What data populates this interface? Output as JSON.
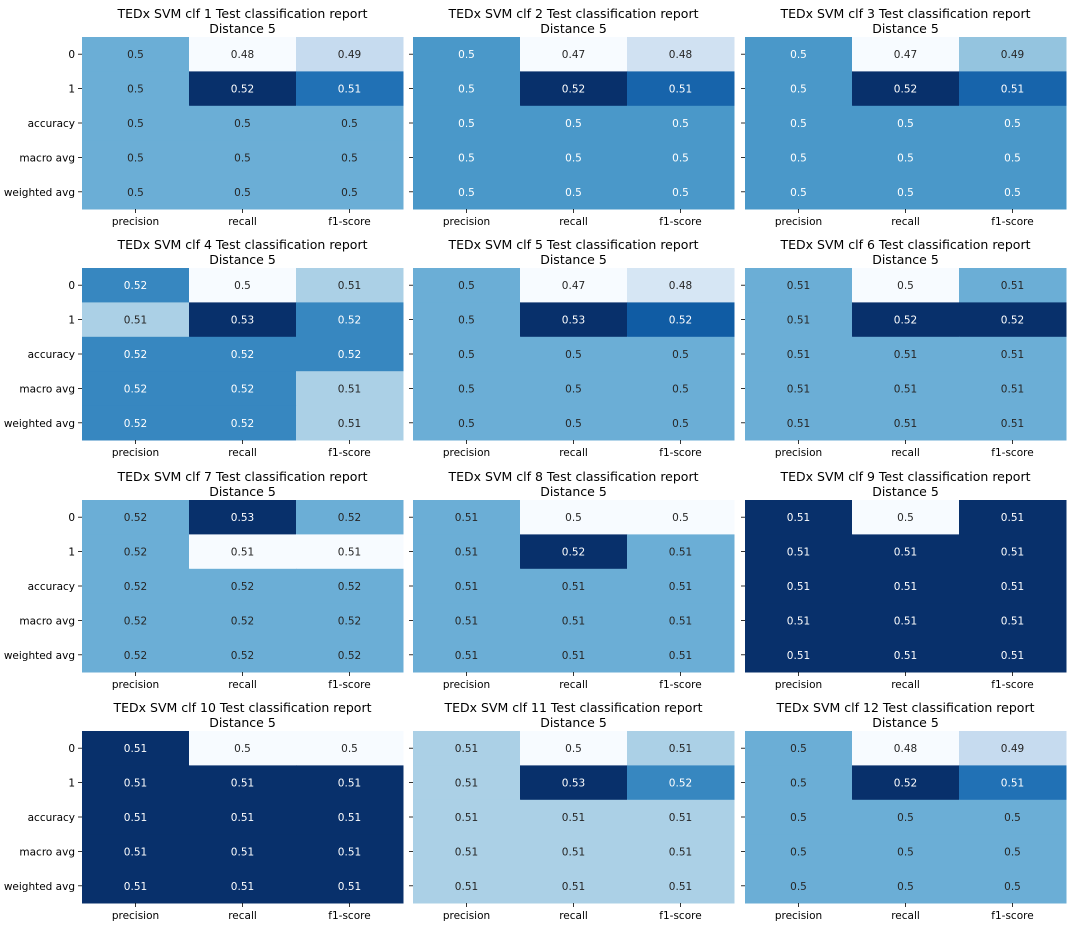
{
  "chart_data": [
    {
      "type": "heatmap",
      "title": [
        "TEDx SVM clf 1 Test classification report",
        "Distance 5"
      ],
      "rows": [
        "0",
        "1",
        "accuracy",
        "macro avg",
        "weighted avg"
      ],
      "columns": [
        "precision",
        "recall",
        "f1-score"
      ],
      "values": [
        [
          0.5,
          0.48,
          0.49
        ],
        [
          0.5,
          0.52,
          0.51
        ],
        [
          0.5,
          0.5,
          0.5
        ],
        [
          0.5,
          0.5,
          0.5
        ],
        [
          0.5,
          0.5,
          0.5
        ]
      ]
    },
    {
      "type": "heatmap",
      "title": [
        "TEDx SVM clf 2 Test classification report",
        "Distance 5"
      ],
      "rows": [
        "0",
        "1",
        "accuracy",
        "macro avg",
        "weighted avg"
      ],
      "columns": [
        "precision",
        "recall",
        "f1-score"
      ],
      "values": [
        [
          0.5,
          0.47,
          0.48
        ],
        [
          0.5,
          0.52,
          0.51
        ],
        [
          0.5,
          0.5,
          0.5
        ],
        [
          0.5,
          0.5,
          0.5
        ],
        [
          0.5,
          0.5,
          0.5
        ]
      ]
    },
    {
      "type": "heatmap",
      "title": [
        "TEDx SVM clf 3 Test classification report",
        "Distance 5"
      ],
      "rows": [
        "0",
        "1",
        "accuracy",
        "macro avg",
        "weighted avg"
      ],
      "columns": [
        "precision",
        "recall",
        "f1-score"
      ],
      "values": [
        [
          0.5,
          0.47,
          0.49
        ],
        [
          0.5,
          0.52,
          0.51
        ],
        [
          0.5,
          0.5,
          0.5
        ],
        [
          0.5,
          0.5,
          0.5
        ],
        [
          0.5,
          0.5,
          0.5
        ]
      ]
    },
    {
      "type": "heatmap",
      "title": [
        "TEDx SVM clf 4 Test classification report",
        "Distance 5"
      ],
      "rows": [
        "0",
        "1",
        "accuracy",
        "macro avg",
        "weighted avg"
      ],
      "columns": [
        "precision",
        "recall",
        "f1-score"
      ],
      "values": [
        [
          0.52,
          0.5,
          0.51
        ],
        [
          0.51,
          0.53,
          0.52
        ],
        [
          0.52,
          0.52,
          0.52
        ],
        [
          0.52,
          0.52,
          0.51
        ],
        [
          0.52,
          0.52,
          0.51
        ]
      ]
    },
    {
      "type": "heatmap",
      "title": [
        "TEDx SVM clf 5 Test classification report",
        "Distance 5"
      ],
      "rows": [
        "0",
        "1",
        "accuracy",
        "macro avg",
        "weighted avg"
      ],
      "columns": [
        "precision",
        "recall",
        "f1-score"
      ],
      "values": [
        [
          0.5,
          0.47,
          0.48
        ],
        [
          0.5,
          0.53,
          0.52
        ],
        [
          0.5,
          0.5,
          0.5
        ],
        [
          0.5,
          0.5,
          0.5
        ],
        [
          0.5,
          0.5,
          0.5
        ]
      ]
    },
    {
      "type": "heatmap",
      "title": [
        "TEDx SVM clf 6 Test classification report",
        "Distance 5"
      ],
      "rows": [
        "0",
        "1",
        "accuracy",
        "macro avg",
        "weighted avg"
      ],
      "columns": [
        "precision",
        "recall",
        "f1-score"
      ],
      "values": [
        [
          0.51,
          0.5,
          0.51
        ],
        [
          0.51,
          0.52,
          0.52
        ],
        [
          0.51,
          0.51,
          0.51
        ],
        [
          0.51,
          0.51,
          0.51
        ],
        [
          0.51,
          0.51,
          0.51
        ]
      ]
    },
    {
      "type": "heatmap",
      "title": [
        "TEDx SVM clf 7 Test classification report",
        "Distance 5"
      ],
      "rows": [
        "0",
        "1",
        "accuracy",
        "macro avg",
        "weighted avg"
      ],
      "columns": [
        "precision",
        "recall",
        "f1-score"
      ],
      "values": [
        [
          0.52,
          0.53,
          0.52
        ],
        [
          0.52,
          0.51,
          0.51
        ],
        [
          0.52,
          0.52,
          0.52
        ],
        [
          0.52,
          0.52,
          0.52
        ],
        [
          0.52,
          0.52,
          0.52
        ]
      ]
    },
    {
      "type": "heatmap",
      "title": [
        "TEDx SVM clf 8 Test classification report",
        "Distance 5"
      ],
      "rows": [
        "0",
        "1",
        "accuracy",
        "macro avg",
        "weighted avg"
      ],
      "columns": [
        "precision",
        "recall",
        "f1-score"
      ],
      "values": [
        [
          0.51,
          0.5,
          0.5
        ],
        [
          0.51,
          0.52,
          0.51
        ],
        [
          0.51,
          0.51,
          0.51
        ],
        [
          0.51,
          0.51,
          0.51
        ],
        [
          0.51,
          0.51,
          0.51
        ]
      ]
    },
    {
      "type": "heatmap",
      "title": [
        "TEDx SVM clf 9 Test classification report",
        "Distance 5"
      ],
      "rows": [
        "0",
        "1",
        "accuracy",
        "macro avg",
        "weighted avg"
      ],
      "columns": [
        "precision",
        "recall",
        "f1-score"
      ],
      "values": [
        [
          0.51,
          0.5,
          0.51
        ],
        [
          0.51,
          0.51,
          0.51
        ],
        [
          0.51,
          0.51,
          0.51
        ],
        [
          0.51,
          0.51,
          0.51
        ],
        [
          0.51,
          0.51,
          0.51
        ]
      ]
    },
    {
      "type": "heatmap",
      "title": [
        "TEDx SVM clf 10 Test classification report",
        "Distance 5"
      ],
      "rows": [
        "0",
        "1",
        "accuracy",
        "macro avg",
        "weighted avg"
      ],
      "columns": [
        "precision",
        "recall",
        "f1-score"
      ],
      "values": [
        [
          0.51,
          0.5,
          0.5
        ],
        [
          0.51,
          0.51,
          0.51
        ],
        [
          0.51,
          0.51,
          0.51
        ],
        [
          0.51,
          0.51,
          0.51
        ],
        [
          0.51,
          0.51,
          0.51
        ]
      ]
    },
    {
      "type": "heatmap",
      "title": [
        "TEDx SVM clf 11 Test classification report",
        "Distance 5"
      ],
      "rows": [
        "0",
        "1",
        "accuracy",
        "macro avg",
        "weighted avg"
      ],
      "columns": [
        "precision",
        "recall",
        "f1-score"
      ],
      "values": [
        [
          0.51,
          0.5,
          0.51
        ],
        [
          0.51,
          0.53,
          0.52
        ],
        [
          0.51,
          0.51,
          0.51
        ],
        [
          0.51,
          0.51,
          0.51
        ],
        [
          0.51,
          0.51,
          0.51
        ]
      ]
    },
    {
      "type": "heatmap",
      "title": [
        "TEDx SVM clf 12 Test classification report",
        "Distance 5"
      ],
      "rows": [
        "0",
        "1",
        "accuracy",
        "macro avg",
        "weighted avg"
      ],
      "columns": [
        "precision",
        "recall",
        "f1-score"
      ],
      "values": [
        [
          0.5,
          0.48,
          0.49
        ],
        [
          0.5,
          0.52,
          0.51
        ],
        [
          0.5,
          0.5,
          0.5
        ],
        [
          0.5,
          0.5,
          0.5
        ],
        [
          0.5,
          0.5,
          0.5
        ]
      ]
    }
  ],
  "colormap": {
    "name": "Blues",
    "light": "#f7fbff",
    "dark": "#08306b",
    "text_on_light": "#262626",
    "text_on_dark": "#ffffff"
  }
}
